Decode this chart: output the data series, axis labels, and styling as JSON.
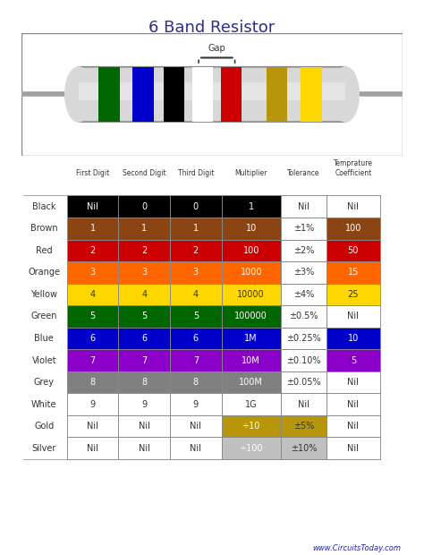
{
  "title": "6 Band Resistor",
  "title_color": "#2E2E8B",
  "watermark": "www.CircuitsToday.com",
  "rows": [
    {
      "label": "Black",
      "color": "#000000",
      "text_color": "#ffffff",
      "d1": "Nil",
      "d2": "0",
      "d3": "0",
      "mult": "1",
      "mult_color": "#000000",
      "tol": "Nil",
      "tol_color": null,
      "tc": "Nil",
      "tc_color": null
    },
    {
      "label": "Brown",
      "color": "#8B4513",
      "text_color": "#ffffff",
      "d1": "1",
      "d2": "1",
      "d3": "1",
      "mult": "10",
      "mult_color": "#8B4513",
      "tol": "±1%",
      "tol_color": null,
      "tc": "100",
      "tc_color": "#8B4513"
    },
    {
      "label": "Red",
      "color": "#CC0000",
      "text_color": "#ffffff",
      "d1": "2",
      "d2": "2",
      "d3": "2",
      "mult": "100",
      "mult_color": "#CC0000",
      "tol": "±2%",
      "tol_color": null,
      "tc": "50",
      "tc_color": "#CC0000"
    },
    {
      "label": "Orange",
      "color": "#FF6600",
      "text_color": "#ffffff",
      "d1": "3",
      "d2": "3",
      "d3": "3",
      "mult": "1000",
      "mult_color": "#FF6600",
      "tol": "±3%",
      "tol_color": null,
      "tc": "15",
      "tc_color": "#FF6600"
    },
    {
      "label": "Yellow",
      "color": "#FFD700",
      "text_color": "#333333",
      "d1": "4",
      "d2": "4",
      "d3": "4",
      "mult": "10000",
      "mult_color": "#FFD700",
      "tol": "±4%",
      "tol_color": null,
      "tc": "25",
      "tc_color": "#FFD700"
    },
    {
      "label": "Green",
      "color": "#006600",
      "text_color": "#ffffff",
      "d1": "5",
      "d2": "5",
      "d3": "5",
      "mult": "100000",
      "mult_color": "#006600",
      "tol": "±0.5%",
      "tol_color": null,
      "tc": "Nil",
      "tc_color": null
    },
    {
      "label": "Blue",
      "color": "#0000CC",
      "text_color": "#ffffff",
      "d1": "6",
      "d2": "6",
      "d3": "6",
      "mult": "1M",
      "mult_color": "#0000CC",
      "tol": "±0.25%",
      "tol_color": null,
      "tc": "10",
      "tc_color": "#0000CC"
    },
    {
      "label": "Violet",
      "color": "#8B00C9",
      "text_color": "#ffffff",
      "d1": "7",
      "d2": "7",
      "d3": "7",
      "mult": "10M",
      "mult_color": "#8B00C9",
      "tol": "±0.10%",
      "tol_color": null,
      "tc": "5",
      "tc_color": "#8B00C9"
    },
    {
      "label": "Grey",
      "color": "#808080",
      "text_color": "#ffffff",
      "d1": "8",
      "d2": "8",
      "d3": "8",
      "mult": "100M",
      "mult_color": "#808080",
      "tol": "±0.05%",
      "tol_color": null,
      "tc": "Nil",
      "tc_color": null
    },
    {
      "label": "White",
      "color": "#ffffff",
      "text_color": "#000000",
      "d1": "9",
      "d2": "9",
      "d3": "9",
      "mult": "1G",
      "mult_color": null,
      "tol": "Nil",
      "tol_color": null,
      "tc": "Nil",
      "tc_color": null
    },
    {
      "label": "Gold",
      "color": "#ffffff",
      "text_color": "#000000",
      "d1": "Nil",
      "d2": "Nil",
      "d3": "Nil",
      "mult": "÷10",
      "mult_color": "#B8960C",
      "tol": "±5%",
      "tol_color": "#B8960C",
      "tc": "Nil",
      "tc_color": null
    },
    {
      "label": "Silver",
      "color": "#ffffff",
      "text_color": "#000000",
      "d1": "Nil",
      "d2": "Nil",
      "d3": "Nil",
      "mult": "÷100",
      "mult_color": "#C0C0C0",
      "tol": "±10%",
      "tol_color": "#C0C0C0",
      "tc": "Nil",
      "tc_color": null
    }
  ],
  "col_headers": [
    "First Digit",
    "Second Digit",
    "Third Digit",
    "Multiplier",
    "Tolerance",
    "Temprature\nCoefficient"
  ],
  "band_colors": [
    "#006600",
    "#0000CC",
    "#000000",
    "#ffffff",
    "#CC0000",
    "#B8960C",
    "#FFD700"
  ],
  "resistor_body_color": "#E0E0E0",
  "resistor_lead_color": "#A0A0A0"
}
